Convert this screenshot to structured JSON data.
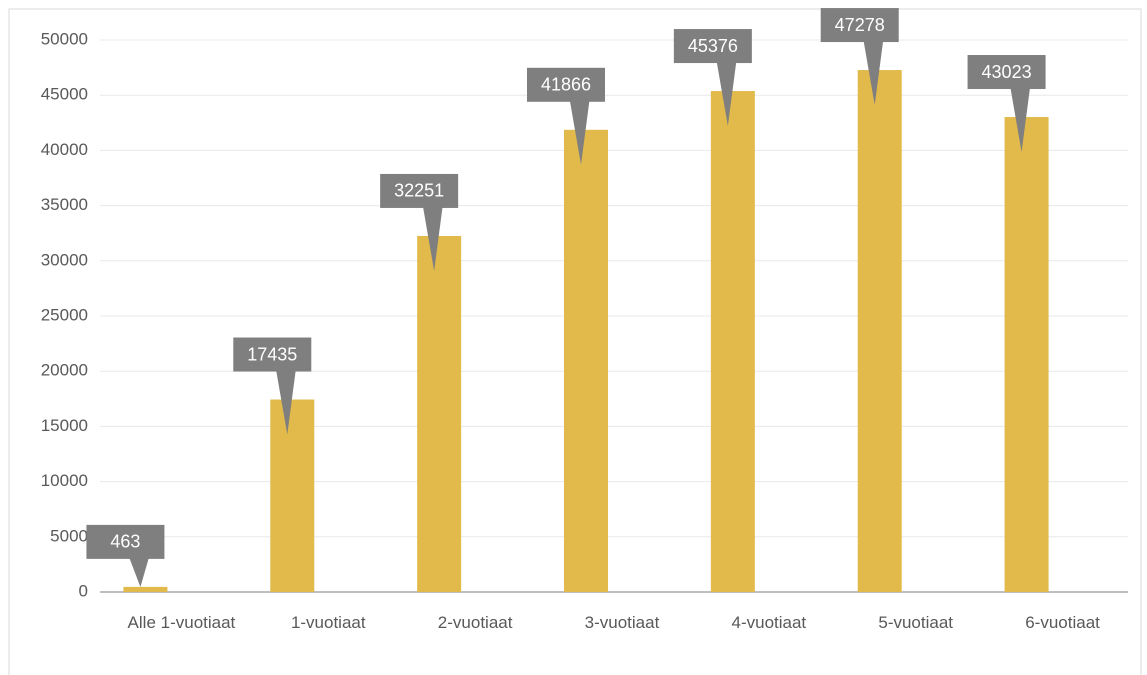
{
  "chart_data": {
    "type": "bar",
    "categories": [
      "Alle 1-vuotiaat",
      "1-vuotiaat",
      "2-vuotiaat",
      "3-vuotiaat",
      "4-vuotiaat",
      "5-vuotiaat",
      "6-vuotiaat"
    ],
    "values": [
      463,
      17435,
      32251,
      41866,
      45376,
      47278,
      43023
    ],
    "color": "#e2ba4b",
    "ylim": [
      0,
      50000
    ],
    "yticks": [
      0,
      5000,
      10000,
      15000,
      20000,
      25000,
      30000,
      35000,
      40000,
      45000,
      50000
    ],
    "grid": true
  }
}
